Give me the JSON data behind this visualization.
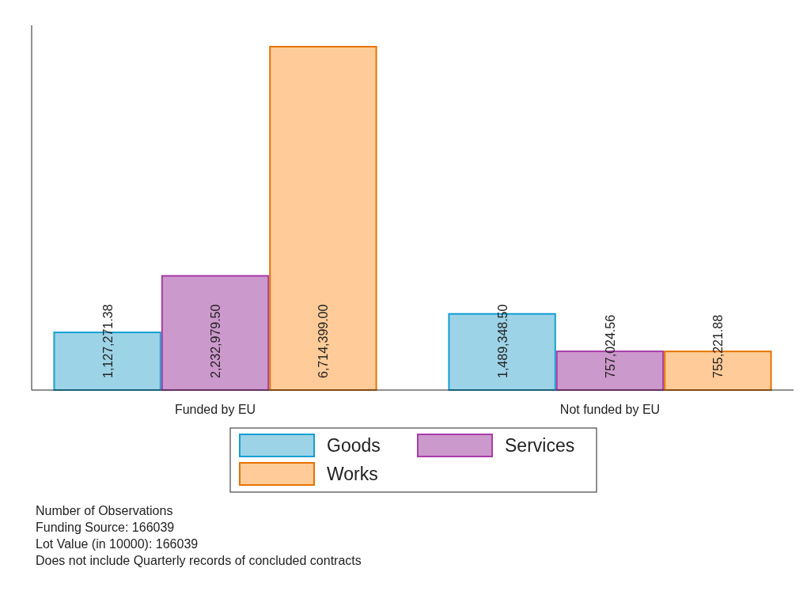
{
  "chart_data": {
    "type": "bar",
    "categories": [
      "Funded by EU",
      "Not funded by EU"
    ],
    "series": [
      {
        "name": "Goods",
        "color": "#9dd3e6",
        "values": [
          1127271.38,
          1489348.5
        ],
        "value_labels": [
          "1,127,271.38",
          "1,489,348.50"
        ]
      },
      {
        "name": "Services",
        "color": "#cc99cc",
        "values": [
          2232979.5,
          757024.56
        ],
        "value_labels": [
          "2,232,979.50",
          "757,024.56"
        ]
      },
      {
        "name": "Works",
        "color": "#ffcc99",
        "values": [
          6714399.0,
          755221.88
        ],
        "value_labels": [
          "6,714,399.00",
          "755,221.88"
        ]
      }
    ],
    "legend": "bottom",
    "annotations": [
      "Number of Observations",
      "Funding Source: 166039",
      "Lot Value (in 10000): 166039",
      "Does not include Quarterly records of concluded contracts"
    ]
  }
}
